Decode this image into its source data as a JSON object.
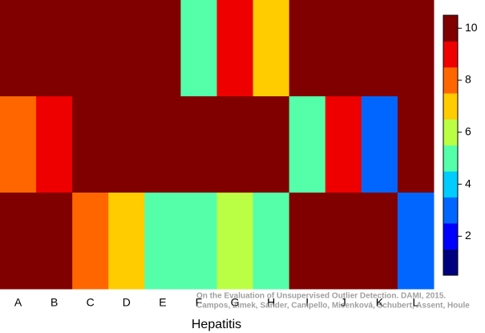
{
  "chart_data": {
    "type": "heatmap",
    "x_label": "Hepatitis",
    "categories": [
      "A",
      "B",
      "C",
      "D",
      "E",
      "F",
      "G",
      "H",
      "I",
      "J",
      "K",
      "L"
    ],
    "values": [
      [
        10,
        10,
        10,
        10,
        10,
        5,
        9,
        7,
        10,
        10,
        10,
        10
      ],
      [
        8,
        9,
        10,
        10,
        10,
        10,
        10,
        10,
        5,
        9,
        3,
        10
      ],
      [
        10,
        10,
        8,
        7,
        5,
        5,
        6,
        5,
        10,
        10,
        10,
        3
      ]
    ],
    "colors": [
      "#00007f",
      "#0000ff",
      "#0066ff",
      "#00ccff",
      "#55ffaa",
      "#bbff44",
      "#ffcc00",
      "#ff6600",
      "#ee0000",
      "#800000"
    ],
    "clim": [
      0.5,
      10.5
    ],
    "cticks": [
      2,
      4,
      6,
      8,
      10
    ],
    "watermark": [
      "On the Evaluation of Unsupervised Outlier Detection. DAMI, 2015.",
      "Campos, Zimek, Sander, Campello, Micenková, Schubert, Assent, Houle"
    ]
  }
}
